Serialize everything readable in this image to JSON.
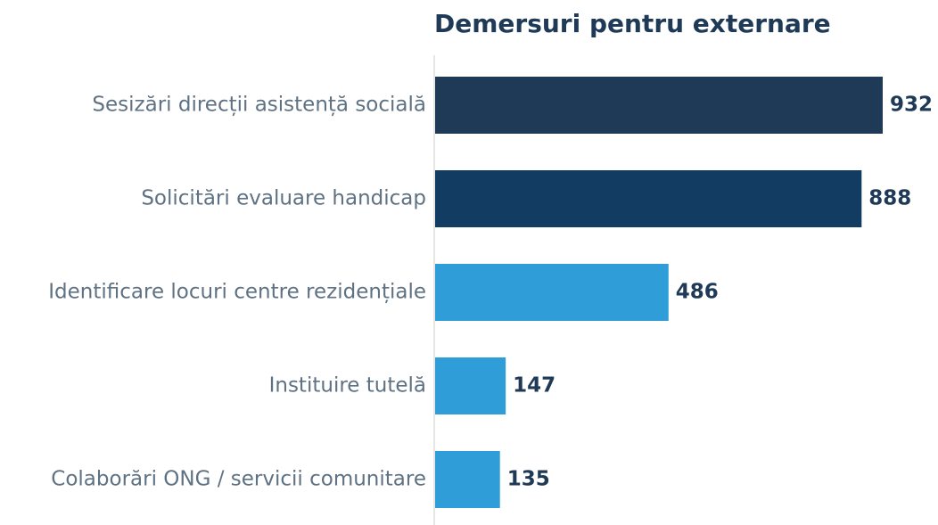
{
  "chart_data": {
    "type": "bar",
    "orientation": "horizontal",
    "title": "Demersuri pentru externare",
    "categories": [
      "Sesizări direcții asistență socială",
      "Solicitări evaluare handicap",
      "Identificare locuri centre rezidențiale",
      "Instituire tutelă",
      "Colaborări ONG / servicii comunitare"
    ],
    "values": [
      932,
      888,
      486,
      147,
      135
    ],
    "colors": [
      "#1f3a57",
      "#133c62",
      "#2f9dd7",
      "#2f9dd7",
      "#2f9dd7"
    ]
  }
}
